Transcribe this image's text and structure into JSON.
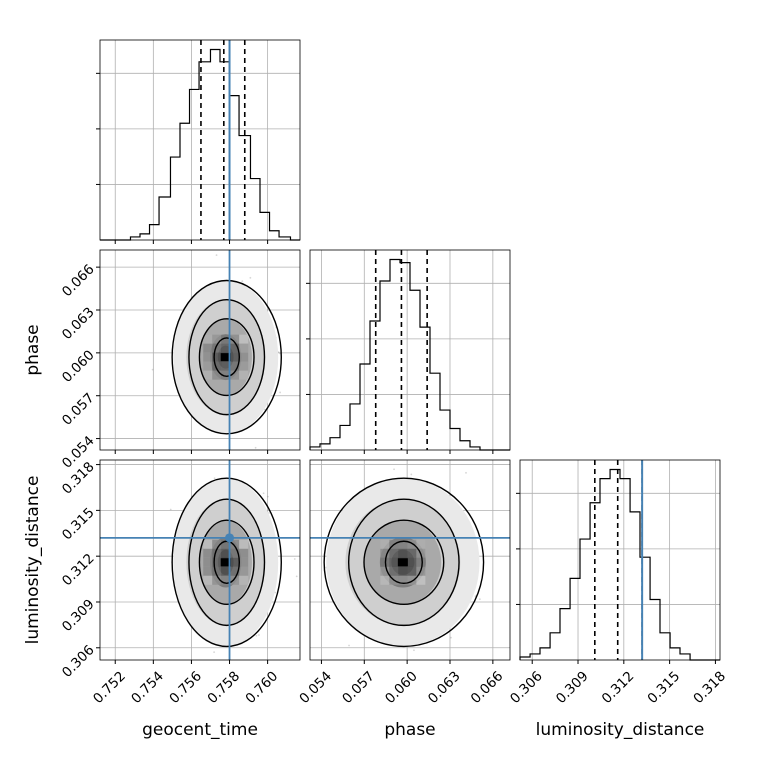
{
  "chart_data": {
    "type": "corner",
    "parameters": [
      "geocent_time",
      "phase",
      "luminosity_distance"
    ],
    "axis_labels": {
      "x": [
        "geocent_time",
        "phase",
        "luminosity_distance"
      ],
      "y": [
        "phase",
        "luminosity_distance"
      ]
    },
    "ranges": {
      "geocent_time": [
        0.7512,
        0.7617
      ],
      "phase": [
        0.0532,
        0.0672
      ],
      "luminosity_distance": [
        0.3052,
        0.3183
      ]
    },
    "ticks": {
      "geocent_time": [
        "0.752",
        "0.754",
        "0.756",
        "0.758",
        "0.760"
      ],
      "phase": [
        "0.054",
        "0.057",
        "0.060",
        "0.063",
        "0.066"
      ],
      "luminosity_distance": [
        "0.306",
        "0.309",
        "0.312",
        "0.315",
        "0.318"
      ]
    },
    "truths": {
      "geocent_time": 0.758,
      "phase": null,
      "luminosity_distance": 0.3132
    },
    "quantiles": {
      "geocent_time": [
        0.7565,
        0.7577,
        0.7588
      ],
      "phase": [
        0.0578,
        0.0596,
        0.0614
      ],
      "luminosity_distance": [
        0.3101,
        0.3116,
        0.3132
      ]
    },
    "histograms": {
      "geocent_time": {
        "edges": [
          0.7512,
          0.7517,
          0.7522,
          0.7528,
          0.7533,
          0.7538,
          0.7543,
          0.7549,
          0.7554,
          0.7559,
          0.7564,
          0.757,
          0.7575,
          0.758,
          0.7585,
          0.7591,
          0.7596,
          0.7601,
          0.7606,
          0.7612,
          0.7617
        ],
        "counts": [
          0,
          0,
          0,
          1,
          2,
          5,
          14,
          27,
          38,
          49,
          58,
          62,
          58,
          47,
          34,
          20,
          9,
          3,
          1,
          0
        ]
      },
      "phase": {
        "edges": [
          0.0532,
          0.0539,
          0.0546,
          0.0553,
          0.056,
          0.0567,
          0.0574,
          0.0581,
          0.0588,
          0.0595,
          0.0602,
          0.0609,
          0.0616,
          0.0623,
          0.063,
          0.0637,
          0.0644,
          0.0651,
          0.0658,
          0.0665,
          0.0672
        ],
        "counts": [
          1,
          2,
          4,
          8,
          15,
          28,
          42,
          55,
          62,
          61,
          52,
          40,
          25,
          13,
          7,
          3,
          1,
          0,
          0,
          0
        ]
      },
      "luminosity_distance": {
        "edges": [
          0.3052,
          0.30586,
          0.30651,
          0.30717,
          0.30782,
          0.30848,
          0.30913,
          0.30979,
          0.31044,
          0.3111,
          0.31175,
          0.31241,
          0.31306,
          0.31372,
          0.31437,
          0.31503,
          0.31568,
          0.31634,
          0.31699,
          0.31765,
          0.3183
        ],
        "counts": [
          1,
          2,
          4,
          9,
          17,
          27,
          40,
          52,
          60,
          63,
          60,
          49,
          34,
          20,
          9,
          4,
          2,
          0,
          0,
          0
        ]
      }
    },
    "pairs": [
      {
        "x": "geocent_time",
        "y": "phase",
        "center": [
          0.7578,
          0.0597
        ],
        "sigma": [
          0.00095,
          0.00185
        ],
        "truth_lines": [
          "x"
        ],
        "truth_point": false
      },
      {
        "x": "geocent_time",
        "y": "luminosity_distance",
        "center": [
          0.7578,
          0.3116
        ],
        "sigma": [
          0.00095,
          0.0019
        ],
        "truth_lines": [
          "x",
          "y"
        ],
        "truth_point": true
      },
      {
        "x": "phase",
        "y": "luminosity_distance",
        "center": [
          0.0597,
          0.3116
        ],
        "sigma": [
          0.00185,
          0.0019
        ],
        "truth_lines": [
          "y"
        ],
        "truth_point": false
      }
    ],
    "contour_levels_sigma": [
      0.5,
      1.0,
      1.5,
      2.0
    ],
    "colors": {
      "hist": "#000000",
      "truth": "#4682b4",
      "grid": "#b0b0b0",
      "scatter": "#8c8c8c",
      "density": "#000000"
    },
    "grid": true
  }
}
